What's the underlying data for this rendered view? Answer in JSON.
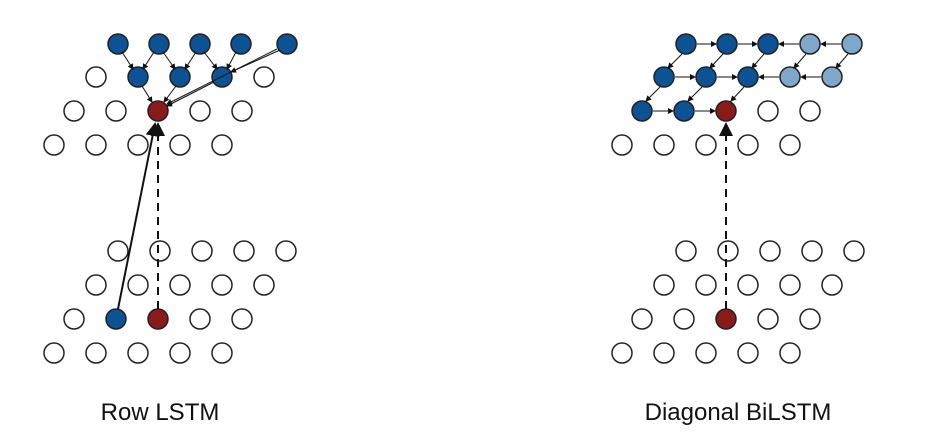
{
  "captions": {
    "left": "Row LSTM",
    "right": "Diagonal BiLSTM"
  },
  "colors": {
    "context_blue": "#0b5394",
    "light_blue": "#7fa7c9",
    "current_red": "#8b1a1a",
    "empty_fill": "#ffffff",
    "outline": "#222222",
    "arrow": "#111111"
  }
}
